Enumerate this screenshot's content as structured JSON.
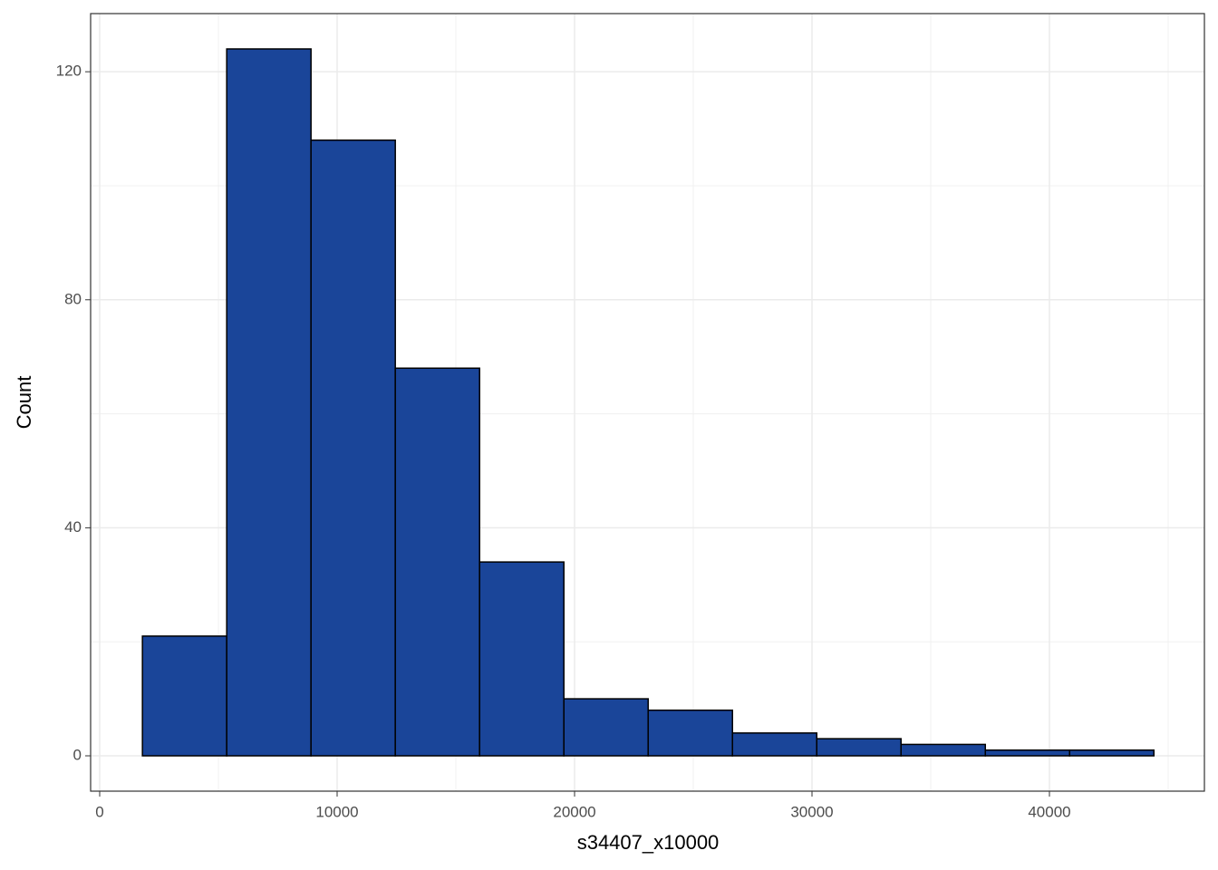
{
  "chart_data": {
    "type": "histogram",
    "x_label": "s34407_x10000",
    "y_label": "Count",
    "bins": [
      1800,
      5350,
      8900,
      12450,
      16000,
      19550,
      23100,
      26650,
      30200,
      33750,
      37300,
      40850,
      44400
    ],
    "values": [
      21,
      124,
      108,
      68,
      34,
      10,
      8,
      4,
      3,
      2,
      1,
      1
    ],
    "color": "#1a4599",
    "xlim": [
      -382,
      46527
    ],
    "xticks": [
      0,
      10000,
      20000,
      30000,
      40000
    ],
    "ylim": [
      -6.2,
      130.2
    ],
    "yticks": [
      0,
      40,
      80,
      120
    ],
    "grid": true
  }
}
